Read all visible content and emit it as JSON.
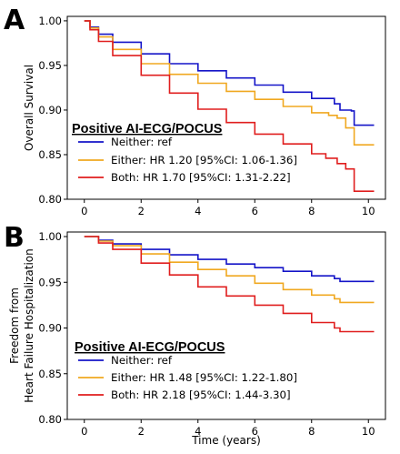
{
  "chart_data": [
    {
      "panel": "A",
      "type": "line",
      "step": true,
      "xlabel": "",
      "ylabel": "Overall Survival",
      "xlim": [
        -0.6,
        10.6
      ],
      "ylim": [
        0.8,
        1.005
      ],
      "xticks": [
        "0",
        "2",
        "4",
        "6",
        "8",
        "10"
      ],
      "yticks": [
        "0.80",
        "0.85",
        "0.90",
        "0.95",
        "1.00"
      ],
      "grid": false,
      "legend_title": "Positive AI-ECG/POCUS",
      "legend_position": "lower-left",
      "series": [
        {
          "name": "Neither: ref",
          "color": "#1414c8",
          "x": [
            0,
            0.2,
            0.5,
            1,
            2,
            3,
            4,
            5,
            6,
            7,
            8,
            8.8,
            9.0,
            9.4,
            9.5,
            10.2
          ],
          "y": [
            1.0,
            0.993,
            0.985,
            0.976,
            0.963,
            0.952,
            0.944,
            0.936,
            0.928,
            0.92,
            0.913,
            0.907,
            0.9,
            0.899,
            0.883,
            0.883
          ]
        },
        {
          "name": "Either: HR 1.20 [95%CI: 1.06-1.36]",
          "color": "#f0a820",
          "x": [
            0,
            0.2,
            0.5,
            1,
            2,
            3,
            4,
            5,
            6,
            7,
            8,
            8.6,
            8.9,
            9.2,
            9.5,
            10.2
          ],
          "y": [
            1.0,
            0.992,
            0.982,
            0.968,
            0.952,
            0.94,
            0.93,
            0.921,
            0.912,
            0.904,
            0.897,
            0.894,
            0.891,
            0.88,
            0.861,
            0.861
          ]
        },
        {
          "name": "Both: HR 1.70 [95%CI: 1.31-2.22]",
          "color": "#e01e1e",
          "x": [
            0,
            0.2,
            0.5,
            1,
            2,
            3,
            4,
            5,
            6,
            7,
            8,
            8.5,
            8.9,
            9.2,
            9.5,
            10.2
          ],
          "y": [
            1.0,
            0.99,
            0.977,
            0.961,
            0.939,
            0.919,
            0.901,
            0.886,
            0.873,
            0.862,
            0.851,
            0.846,
            0.84,
            0.834,
            0.809,
            0.809
          ]
        }
      ]
    },
    {
      "panel": "B",
      "type": "line",
      "step": true,
      "xlabel": "Time (years)",
      "ylabel": "Freedom from Heart Failure Hospitalization",
      "ylabel_lines": [
        "Freedom from",
        "Heart Failure Hospitalization"
      ],
      "xlim": [
        -0.6,
        10.6
      ],
      "ylim": [
        0.8,
        1.005
      ],
      "xticks": [
        "0",
        "2",
        "4",
        "6",
        "8",
        "10"
      ],
      "yticks": [
        "0.80",
        "0.85",
        "0.90",
        "0.95",
        "1.00"
      ],
      "grid": false,
      "legend_title": "Positive AI-ECG/POCUS",
      "legend_position": "lower-left",
      "series": [
        {
          "name": "Neither: ref",
          "color": "#1414c8",
          "x": [
            0,
            0.5,
            1,
            2,
            3,
            4,
            5,
            6,
            7,
            8,
            8.8,
            9.0,
            10.2
          ],
          "y": [
            1.0,
            0.996,
            0.992,
            0.986,
            0.98,
            0.975,
            0.97,
            0.966,
            0.962,
            0.957,
            0.954,
            0.951,
            0.951
          ]
        },
        {
          "name": "Either: HR 1.48 [95%CI: 1.22-1.80]",
          "color": "#f0a820",
          "x": [
            0,
            0.5,
            1,
            2,
            3,
            4,
            5,
            6,
            7,
            8,
            8.8,
            9.0,
            10.2
          ],
          "y": [
            1.0,
            0.995,
            0.99,
            0.981,
            0.972,
            0.964,
            0.957,
            0.949,
            0.942,
            0.936,
            0.932,
            0.928,
            0.928
          ]
        },
        {
          "name": "Both: HR 2.18 [95%CI: 1.44-3.30]",
          "color": "#e01e1e",
          "x": [
            0,
            0.5,
            1,
            2,
            3,
            4,
            5,
            6,
            7,
            8,
            8.8,
            9.0,
            10.2
          ],
          "y": [
            1.0,
            0.993,
            0.986,
            0.971,
            0.958,
            0.945,
            0.935,
            0.925,
            0.916,
            0.906,
            0.9,
            0.896,
            0.896
          ]
        }
      ]
    }
  ]
}
